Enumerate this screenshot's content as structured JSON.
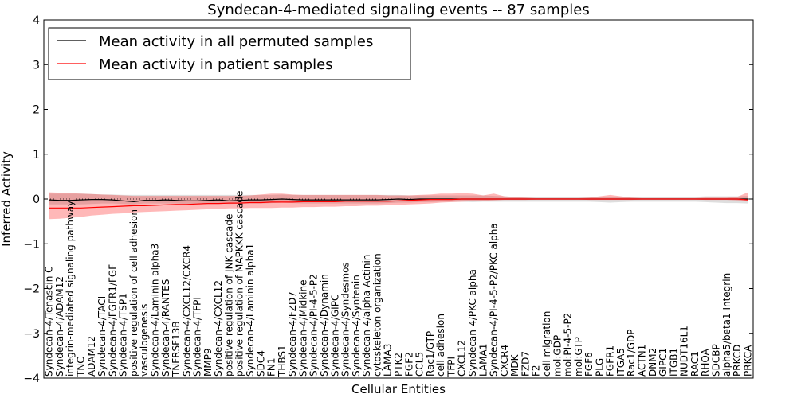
{
  "chart_data": {
    "type": "line",
    "title": "Syndecan-4-mediated signaling events -- 87 samples",
    "xlabel": "Cellular Entities",
    "ylabel": "Inferred Activity",
    "ylim": [
      -4,
      4
    ],
    "yticks": [
      -4,
      -3,
      -2,
      -1,
      0,
      1,
      2,
      3,
      4
    ],
    "legend_position": "top-left",
    "categories": [
      "Syndecan-4/Tenascin C",
      "Syndecan-4/ADAM12",
      "integrin-mediated signaling pathway",
      "TNC",
      "ADAM12",
      "Syndecan-4/TACI",
      "Syndecan-4/FGFR1/FGF",
      "Syndecan-4/TSP1",
      "positive regulation of cell adhesion",
      "vasculogenesis",
      "Syndecan-4/Laminin alpha3",
      "Syndecan-4/RANTES",
      "TNFRSF13B",
      "Syndecan-4/CXCL12/CXCR4",
      "Syndecan-4/TFPI",
      "MMP9",
      "Syndecan-4/CXCL12",
      "positive regulation of JNK cascade",
      "positive regulation of MAPKKK cascade",
      "Syndecan-4/Laminin alpha1",
      "SDC4",
      "FN1",
      "THBS1",
      "Syndecan-4/FZD7",
      "Syndecan-4/Midkine",
      "Syndecan-4/PI-4-5-P2",
      "Syndecan-4/Dynamin",
      "Syndecan-4/GIPC",
      "Syndecan-4/Syndesmos",
      "Syndecan-4/Syntenin",
      "Syndecan-4/alpha-Actinin",
      "cytoskeleton organization",
      "LAMA3",
      "PTK2",
      "FGF2",
      "CCL5",
      "Rac1/GTP",
      "cell adhesion",
      "TFPI",
      "CXCL12",
      "Syndecan-4/PKC alpha",
      "LAMA1",
      "Syndecan-4/PI-4-5-P2/PKC alpha",
      "CXCR4",
      "MDK",
      "FZD7",
      "F2",
      "cell migration",
      "mol:GDP",
      "mol:PI-4-5-P2",
      "mol:GTP",
      "FGF6",
      "PLG",
      "FGFR1",
      "ITGA5",
      "Rac1/GDP",
      "ACTN1",
      "DNM2",
      "GIPC1",
      "ITGB1",
      "NUDT16L1",
      "RAC1",
      "RHOA",
      "SDCBP",
      "alpha5/beta1 Integrin",
      "PRKCD",
      "PRKCA"
    ],
    "series": [
      {
        "name": "Mean activity in all permuted samples",
        "color": "#000000",
        "values": [
          -0.02,
          -0.03,
          -0.03,
          -0.02,
          -0.01,
          -0.01,
          -0.02,
          -0.04,
          -0.06,
          -0.03,
          -0.03,
          -0.02,
          -0.03,
          -0.04,
          -0.04,
          -0.03,
          -0.02,
          -0.04,
          -0.03,
          -0.02,
          -0.02,
          -0.01,
          0.0,
          -0.01,
          -0.02,
          -0.02,
          -0.02,
          -0.02,
          -0.02,
          -0.02,
          -0.02,
          -0.02,
          -0.01,
          0.0,
          -0.01,
          0.0,
          0.0,
          0.0,
          0.0,
          0.0,
          0.0,
          0.0,
          0.0,
          0.0,
          0.0,
          0.0,
          0.0,
          0.0,
          0.0,
          0.0,
          0.0,
          0.0,
          0.0,
          0.0,
          0.0,
          0.0,
          0.0,
          0.0,
          0.0,
          0.0,
          0.0,
          0.0,
          0.0,
          0.0,
          0.0,
          0.0,
          0.0
        ],
        "band_lower": [
          -0.12,
          -0.12,
          -0.12,
          -0.12,
          -0.11,
          -0.1,
          -0.1,
          -0.11,
          -0.12,
          -0.1,
          -0.1,
          -0.1,
          -0.1,
          -0.11,
          -0.11,
          -0.1,
          -0.1,
          -0.11,
          -0.1,
          -0.1,
          -0.1,
          -0.09,
          -0.08,
          -0.09,
          -0.1,
          -0.1,
          -0.1,
          -0.1,
          -0.1,
          -0.1,
          -0.1,
          -0.1,
          -0.09,
          -0.08,
          -0.08,
          -0.07,
          -0.07,
          -0.06,
          -0.06,
          -0.06,
          -0.07,
          -0.06,
          -0.06,
          -0.06,
          -0.06,
          -0.06,
          -0.06,
          -0.06,
          -0.06,
          -0.06,
          -0.06,
          -0.06,
          -0.07,
          -0.08,
          -0.07,
          -0.06,
          -0.06,
          -0.06,
          -0.06,
          -0.06,
          -0.06,
          -0.06,
          -0.07,
          -0.08,
          -0.09,
          -0.09,
          -0.1
        ],
        "band_upper": [
          0.12,
          0.12,
          0.12,
          0.12,
          0.11,
          0.1,
          0.1,
          0.09,
          0.09,
          0.09,
          0.09,
          0.09,
          0.09,
          0.09,
          0.09,
          0.09,
          0.09,
          0.09,
          0.09,
          0.09,
          0.09,
          0.09,
          0.1,
          0.09,
          0.09,
          0.09,
          0.09,
          0.09,
          0.09,
          0.09,
          0.09,
          0.09,
          0.09,
          0.09,
          0.08,
          0.08,
          0.08,
          0.08,
          0.08,
          0.08,
          0.08,
          0.08,
          0.07,
          0.06,
          0.05,
          0.05,
          0.05,
          0.05,
          0.05,
          0.05,
          0.05,
          0.05,
          0.05,
          0.05,
          0.05,
          0.05,
          0.05,
          0.05,
          0.05,
          0.05,
          0.05,
          0.05,
          0.06,
          0.06,
          0.06,
          0.06,
          0.07
        ]
      },
      {
        "name": "Mean activity in patient samples",
        "color": "#ff0000",
        "values": [
          -0.2,
          -0.2,
          -0.2,
          -0.2,
          -0.19,
          -0.18,
          -0.17,
          -0.16,
          -0.15,
          -0.15,
          -0.14,
          -0.13,
          -0.12,
          -0.12,
          -0.11,
          -0.1,
          -0.1,
          -0.09,
          -0.09,
          -0.08,
          -0.08,
          -0.07,
          -0.07,
          -0.07,
          -0.06,
          -0.06,
          -0.06,
          -0.06,
          -0.05,
          -0.05,
          -0.05,
          -0.05,
          -0.05,
          -0.04,
          -0.03,
          -0.02,
          -0.01,
          -0.01,
          -0.01,
          0.0,
          0.0,
          0.0,
          0.0,
          0.0,
          0.0,
          0.0,
          0.0,
          0.0,
          0.0,
          0.0,
          0.0,
          0.0,
          0.0,
          0.0,
          0.0,
          0.0,
          0.0,
          0.0,
          0.0,
          0.0,
          0.0,
          0.0,
          0.0,
          0.0,
          0.0,
          0.0,
          -0.02
        ],
        "band_lower": [
          -0.45,
          -0.44,
          -0.42,
          -0.4,
          -0.37,
          -0.35,
          -0.33,
          -0.32,
          -0.3,
          -0.29,
          -0.28,
          -0.27,
          -0.26,
          -0.25,
          -0.24,
          -0.23,
          -0.22,
          -0.21,
          -0.21,
          -0.2,
          -0.2,
          -0.2,
          -0.19,
          -0.19,
          -0.18,
          -0.18,
          -0.17,
          -0.17,
          -0.16,
          -0.16,
          -0.15,
          -0.15,
          -0.14,
          -0.13,
          -0.12,
          -0.11,
          -0.1,
          -0.08,
          -0.07,
          -0.06,
          -0.05,
          -0.04,
          -0.03,
          -0.02,
          -0.02,
          -0.02,
          -0.01,
          -0.01,
          -0.01,
          -0.01,
          -0.01,
          -0.02,
          -0.02,
          -0.02,
          -0.02,
          -0.02,
          -0.01,
          -0.01,
          -0.01,
          -0.01,
          -0.01,
          -0.01,
          -0.02,
          -0.02,
          -0.02,
          -0.03,
          -0.05
        ],
        "band_upper": [
          0.15,
          0.14,
          0.13,
          0.12,
          0.11,
          0.1,
          0.09,
          0.08,
          0.07,
          0.07,
          0.07,
          0.07,
          0.07,
          0.07,
          0.07,
          0.07,
          0.07,
          0.07,
          0.07,
          0.08,
          0.1,
          0.12,
          0.12,
          0.1,
          0.09,
          0.09,
          0.09,
          0.09,
          0.09,
          0.09,
          0.09,
          0.09,
          0.08,
          0.08,
          0.08,
          0.09,
          0.1,
          0.12,
          0.12,
          0.13,
          0.12,
          0.08,
          0.12,
          0.06,
          0.04,
          0.03,
          0.02,
          0.02,
          0.02,
          0.02,
          0.02,
          0.03,
          0.06,
          0.09,
          0.06,
          0.03,
          0.02,
          0.02,
          0.02,
          0.02,
          0.02,
          0.02,
          0.03,
          0.03,
          0.03,
          0.05,
          0.15
        ]
      }
    ]
  }
}
